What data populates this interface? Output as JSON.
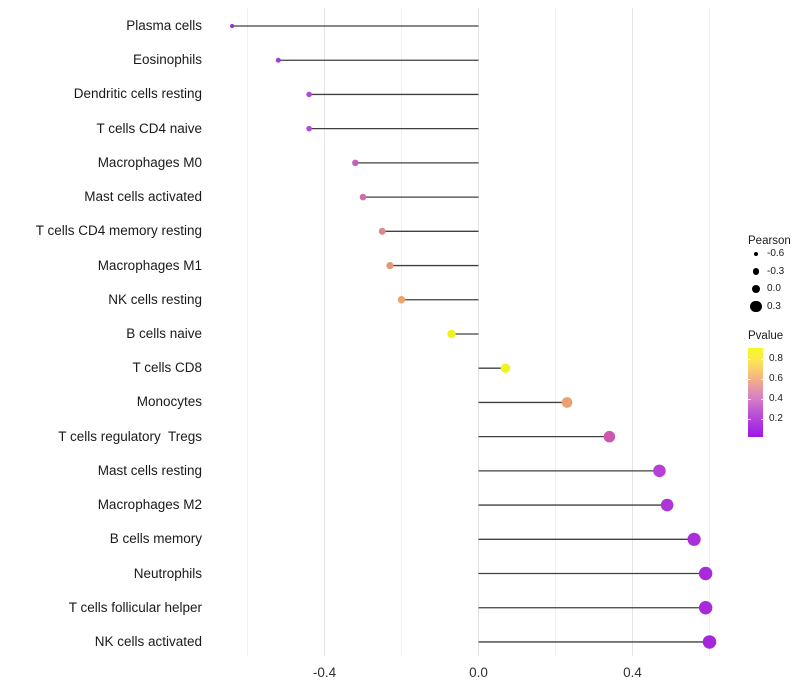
{
  "chart_data": {
    "type": "scatter",
    "subtype": "lollipop",
    "title": "",
    "xlabel": "",
    "ylabel": "",
    "x_tick_labels": [
      "-0.4",
      "0.0",
      "0.4"
    ],
    "x_ticks": [
      -0.4,
      0.0,
      0.4
    ],
    "x_minor_gridlines": [
      -0.6,
      -0.2,
      0.2,
      0.6
    ],
    "xlim": [
      -0.7,
      0.64
    ],
    "grid": "on",
    "legend_position": "right",
    "points": [
      {
        "label": "Plasma cells",
        "pearson": -0.64,
        "color": "#9032cf"
      },
      {
        "label": "Eosinophils",
        "pearson": -0.52,
        "color": "#9e3fd6"
      },
      {
        "label": "Dendritic cells resting",
        "pearson": -0.44,
        "color": "#ae4dd3"
      },
      {
        "label": "T cells CD4 naive",
        "pearson": -0.44,
        "color": "#ae4dd3"
      },
      {
        "label": "Macrophages M0",
        "pearson": -0.32,
        "color": "#c45fbe"
      },
      {
        "label": "Mast cells activated",
        "pearson": -0.3,
        "color": "#cd6fa9"
      },
      {
        "label": "T cells CD4 memory resting",
        "pearson": -0.25,
        "color": "#dc8a8a"
      },
      {
        "label": "Macrophages M1",
        "pearson": -0.23,
        "color": "#e49878"
      },
      {
        "label": "NK cells resting",
        "pearson": -0.2,
        "color": "#eaa46e"
      },
      {
        "label": "B cells naive",
        "pearson": -0.07,
        "color": "#f2f01e"
      },
      {
        "label": "T cells CD8",
        "pearson": 0.07,
        "color": "#f4f21c"
      },
      {
        "label": "Monocytes",
        "pearson": 0.23,
        "color": "#e9a173"
      },
      {
        "label": "T cells regulatory  Tregs",
        "pearson": 0.34,
        "color": "#cb57b0"
      },
      {
        "label": "Mast cells resting",
        "pearson": 0.47,
        "color": "#b83ed5"
      },
      {
        "label": "Macrophages M2",
        "pearson": 0.49,
        "color": "#b034d8"
      },
      {
        "label": "B cells memory",
        "pearson": 0.56,
        "color": "#ab2edb"
      },
      {
        "label": "Neutrophils",
        "pearson": 0.59,
        "color": "#a929dd"
      },
      {
        "label": "T cells follicular helper",
        "pearson": 0.59,
        "color": "#a929dd"
      },
      {
        "label": "NK cells activated",
        "pearson": 0.6,
        "color": "#a626de"
      }
    ],
    "size_legend": {
      "title": "Pearson",
      "entries": [
        {
          "label": "-0.6",
          "value": -0.6
        },
        {
          "label": "-0.3",
          "value": -0.3
        },
        {
          "label": "0.0",
          "value": 0.0
        },
        {
          "label": "0.3",
          "value": 0.3
        }
      ]
    },
    "color_legend": {
      "title": "Pvalue",
      "tick_labels": [
        "0.8",
        "0.6",
        "0.4",
        "0.2"
      ],
      "ticks": [
        0.8,
        0.6,
        0.4,
        0.2
      ],
      "bar_range_top": 0.91,
      "bar_range_bottom": 0.02,
      "gradient_stops": [
        {
          "p": 0.91,
          "color": "#f7f821"
        },
        {
          "p": 0.8,
          "color": "#fbe94c"
        },
        {
          "p": 0.7,
          "color": "#f8cf6e"
        },
        {
          "p": 0.6,
          "color": "#f2b184"
        },
        {
          "p": 0.5,
          "color": "#e595a8"
        },
        {
          "p": 0.4,
          "color": "#d27fc6"
        },
        {
          "p": 0.3,
          "color": "#c45fd1"
        },
        {
          "p": 0.2,
          "color": "#b343dc"
        },
        {
          "p": 0.02,
          "color": "#9e17e6"
        }
      ]
    },
    "style_colors": {
      "stem": "#404040",
      "grid_major": "#e4e4e4",
      "grid_minor": "#f0f0f0",
      "axis_text": "#303030",
      "y_axis_text": "#1a1a1a",
      "legend_dot": "#000000"
    }
  }
}
